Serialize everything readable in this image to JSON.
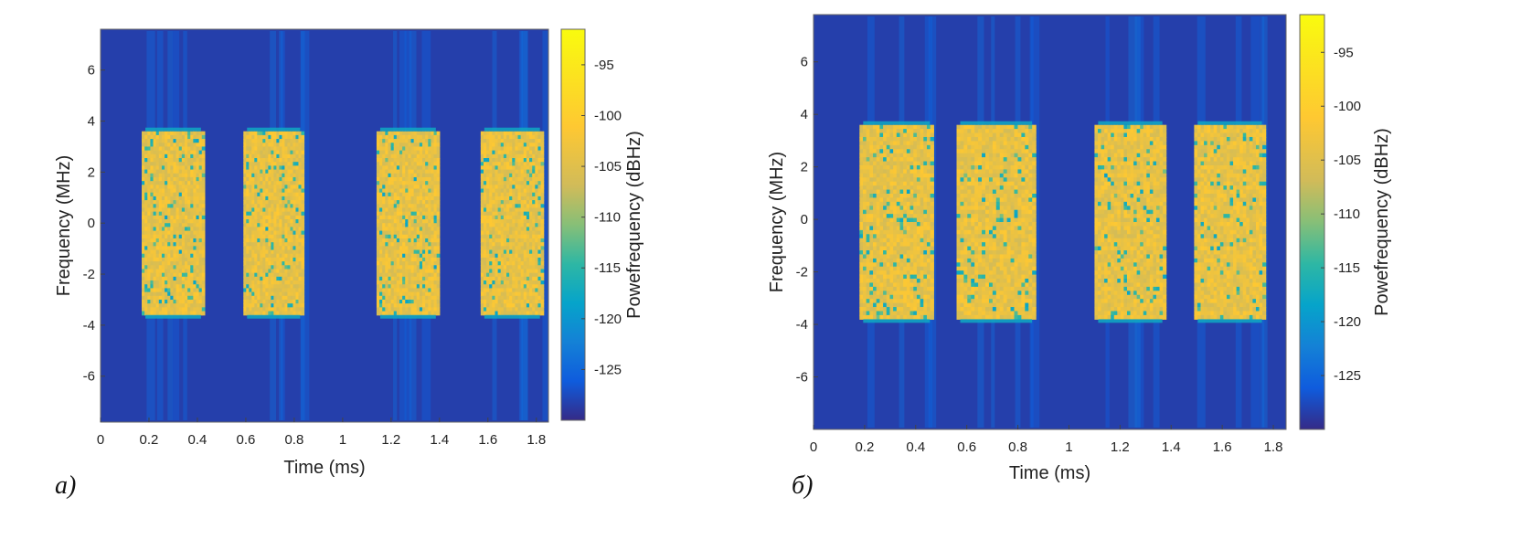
{
  "chart_data": [
    {
      "type": "heatmap",
      "panel_label": "a)",
      "xlabel": "Time (ms)",
      "ylabel": "Frequency (MHz)",
      "colorbar_label": "Powefrequency (dBHz)",
      "xlim": [
        0,
        1.85
      ],
      "ylim": [
        -7.8,
        7.6
      ],
      "x_ticks": [
        "0",
        "0.2",
        "0.4",
        "0.6",
        "0.8",
        "1",
        "1.2",
        "1.4",
        "1.6",
        "1.8"
      ],
      "x_tick_values": [
        0,
        0.2,
        0.4,
        0.6,
        0.8,
        1.0,
        1.2,
        1.4,
        1.6,
        1.8
      ],
      "y_ticks": [
        "6",
        "4",
        "2",
        "0",
        "-2",
        "-4",
        "-6"
      ],
      "y_tick_values": [
        6,
        4,
        2,
        0,
        -2,
        -4,
        -6
      ],
      "colorbar_ticks": [
        "-95",
        "-100",
        "-105",
        "-110",
        "-115",
        "-120",
        "-125"
      ],
      "colorbar_tick_values": [
        -95,
        -100,
        -105,
        -110,
        -115,
        -120,
        -125
      ],
      "clim": [
        -130,
        -91.5
      ],
      "background_level": -128,
      "bursts": [
        {
          "t_start": 0.17,
          "t_end": 0.43,
          "f_low": -3.6,
          "f_high": 3.6,
          "level": -99
        },
        {
          "t_start": 0.59,
          "t_end": 0.84,
          "f_low": -3.6,
          "f_high": 3.6,
          "level": -99
        },
        {
          "t_start": 1.14,
          "t_end": 1.4,
          "f_low": -3.6,
          "f_high": 3.6,
          "level": -99
        },
        {
          "t_start": 1.57,
          "t_end": 1.83,
          "f_low": -3.6,
          "f_high": 3.6,
          "level": -99
        }
      ]
    },
    {
      "type": "heatmap",
      "panel_label": "б)",
      "xlabel": "Time (ms)",
      "ylabel": "Frequency (MHz)",
      "colorbar_label": "Powefrequency (dBHz)",
      "xlim": [
        0,
        1.85
      ],
      "ylim": [
        -8.0,
        7.8
      ],
      "x_ticks": [
        "0",
        "0.2",
        "0.4",
        "0.6",
        "0.8",
        "1",
        "1.2",
        "1.4",
        "1.6",
        "1.8"
      ],
      "x_tick_values": [
        0,
        0.2,
        0.4,
        0.6,
        0.8,
        1.0,
        1.2,
        1.4,
        1.6,
        1.8
      ],
      "y_ticks": [
        "6",
        "4",
        "2",
        "0",
        "-2",
        "-4",
        "-6"
      ],
      "y_tick_values": [
        6,
        4,
        2,
        0,
        -2,
        -4,
        -6
      ],
      "colorbar_ticks": [
        "-95",
        "-100",
        "-105",
        "-110",
        "-115",
        "-120",
        "-125"
      ],
      "colorbar_tick_values": [
        -95,
        -100,
        -105,
        -110,
        -115,
        -120,
        -125
      ],
      "clim": [
        -130,
        -91.5
      ],
      "background_level": -128,
      "bursts": [
        {
          "t_start": 0.18,
          "t_end": 0.47,
          "f_low": -3.8,
          "f_high": 3.6,
          "level": -99
        },
        {
          "t_start": 0.56,
          "t_end": 0.87,
          "f_low": -3.8,
          "f_high": 3.6,
          "level": -99
        },
        {
          "t_start": 1.1,
          "t_end": 1.38,
          "f_low": -3.8,
          "f_high": 3.6,
          "level": -99
        },
        {
          "t_start": 1.49,
          "t_end": 1.77,
          "f_low": -3.8,
          "f_high": 3.6,
          "level": -99
        }
      ]
    }
  ]
}
